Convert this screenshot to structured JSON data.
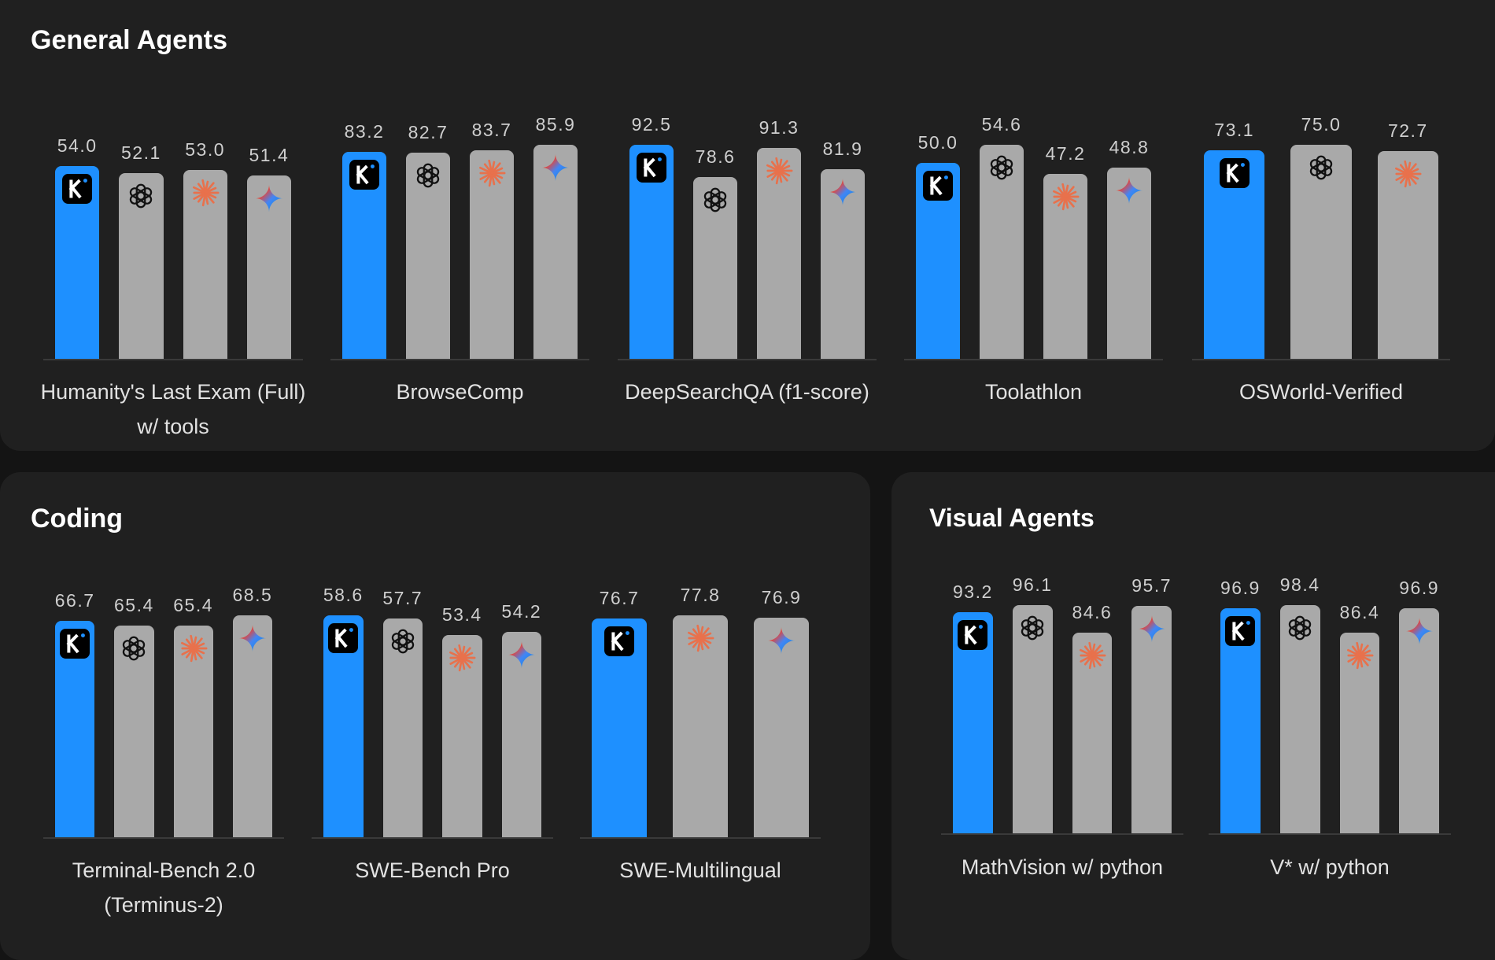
{
  "colors": {
    "highlight": "#1e90ff",
    "other": "#a9a9a9",
    "background": "#141414",
    "panel": "#202020"
  },
  "model_icons": [
    "kimi-logo",
    "openai-logo",
    "claude-logo",
    "gemini-logo"
  ],
  "chart_data": [
    {
      "type": "bar",
      "title": "General Agents",
      "groups": [
        {
          "label": [
            "Humanity's Last Exam (Full)",
            "w/ tools"
          ],
          "icons": [
            "kimi-logo",
            "openai-logo",
            "claude-logo",
            "gemini-logo"
          ],
          "values": [
            "54.0",
            "52.1",
            "53.0",
            "51.4"
          ]
        },
        {
          "label": [
            "BrowseComp"
          ],
          "icons": [
            "kimi-logo",
            "openai-logo",
            "claude-logo",
            "gemini-logo"
          ],
          "values": [
            "83.2",
            "82.7",
            "83.7",
            "85.9"
          ]
        },
        {
          "label": [
            "DeepSearchQA (f1-score)"
          ],
          "icons": [
            "kimi-logo",
            "openai-logo",
            "claude-logo",
            "gemini-logo"
          ],
          "values": [
            "92.5",
            "78.6",
            "91.3",
            "81.9"
          ]
        },
        {
          "label": [
            "Toolathlon"
          ],
          "icons": [
            "kimi-logo",
            "openai-logo",
            "claude-logo",
            "gemini-logo"
          ],
          "values": [
            "50.0",
            "54.6",
            "47.2",
            "48.8"
          ]
        },
        {
          "label": [
            "OSWorld-Verified"
          ],
          "icons": [
            "kimi-logo",
            "openai-logo",
            "claude-logo"
          ],
          "values": [
            "73.1",
            "75.0",
            "72.7"
          ]
        }
      ]
    },
    {
      "type": "bar",
      "title": "Coding",
      "groups": [
        {
          "label": [
            "Terminal-Bench 2.0",
            "(Terminus-2)"
          ],
          "icons": [
            "kimi-logo",
            "openai-logo",
            "claude-logo",
            "gemini-logo"
          ],
          "values": [
            "66.7",
            "65.4",
            "65.4",
            "68.5"
          ]
        },
        {
          "label": [
            "SWE-Bench Pro"
          ],
          "icons": [
            "kimi-logo",
            "openai-logo",
            "claude-logo",
            "gemini-logo"
          ],
          "values": [
            "58.6",
            "57.7",
            "53.4",
            "54.2"
          ]
        },
        {
          "label": [
            "SWE-Multilingual"
          ],
          "icons": [
            "kimi-logo",
            "claude-logo",
            "gemini-logo"
          ],
          "values": [
            "76.7",
            "77.8",
            "76.9"
          ]
        }
      ]
    },
    {
      "type": "bar",
      "title": "Visual Agents",
      "groups": [
        {
          "label": [
            "MathVision w/ python"
          ],
          "icons": [
            "kimi-logo",
            "openai-logo",
            "claude-logo",
            "gemini-logo"
          ],
          "values": [
            "93.2",
            "96.1",
            "84.6",
            "95.7"
          ]
        },
        {
          "label": [
            "V* w/ python"
          ],
          "icons": [
            "kimi-logo",
            "openai-logo",
            "claude-logo",
            "gemini-logo"
          ],
          "values": [
            "96.9",
            "98.4",
            "86.4",
            "96.9"
          ]
        }
      ]
    }
  ]
}
